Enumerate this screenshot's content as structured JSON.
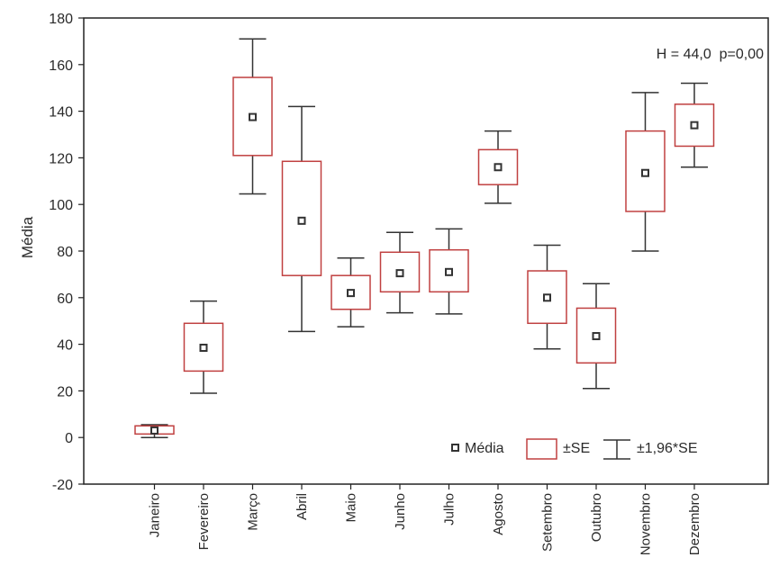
{
  "chart_data": {
    "type": "box",
    "ylabel": "Média",
    "xlabel": "",
    "ylim": [
      -20,
      180
    ],
    "yticks": [
      -20,
      0,
      20,
      40,
      60,
      80,
      100,
      120,
      140,
      160,
      180
    ],
    "categories": [
      "Janeiro",
      "Fevereiro",
      "Março",
      "Abril",
      "Maio",
      "Junho",
      "Julho",
      "Agosto",
      "Setembro",
      "Outubro",
      "Novembro",
      "Dezembro"
    ],
    "mean": [
      3,
      38.5,
      137.5,
      93,
      62,
      70.5,
      71,
      116,
      60,
      43.5,
      113.5,
      134
    ],
    "se_low": [
      1.5,
      28.5,
      121,
      69.5,
      55,
      62.5,
      62.5,
      108.5,
      49,
      32,
      97,
      125
    ],
    "se_high": [
      5,
      49,
      154.5,
      118.5,
      69.5,
      79.5,
      80.5,
      123.5,
      71.5,
      55.5,
      131.5,
      143
    ],
    "ci_low": [
      0,
      19,
      104.5,
      45.5,
      47.5,
      53.5,
      53,
      100.5,
      38,
      21,
      80,
      116
    ],
    "ci_high": [
      5.5,
      58.5,
      171,
      142,
      77,
      88,
      89.5,
      131.5,
      82.5,
      66,
      148,
      152
    ],
    "annotation": "H = 44,0  p=0,00",
    "legend": {
      "placement": "bottom-right",
      "items": [
        "Média",
        "±SE",
        "±1,96*SE"
      ]
    },
    "grid": false,
    "colors": {
      "box": "#c04040",
      "whisker": "#333333",
      "mean_marker": "#333333",
      "axis": "#222222"
    }
  }
}
